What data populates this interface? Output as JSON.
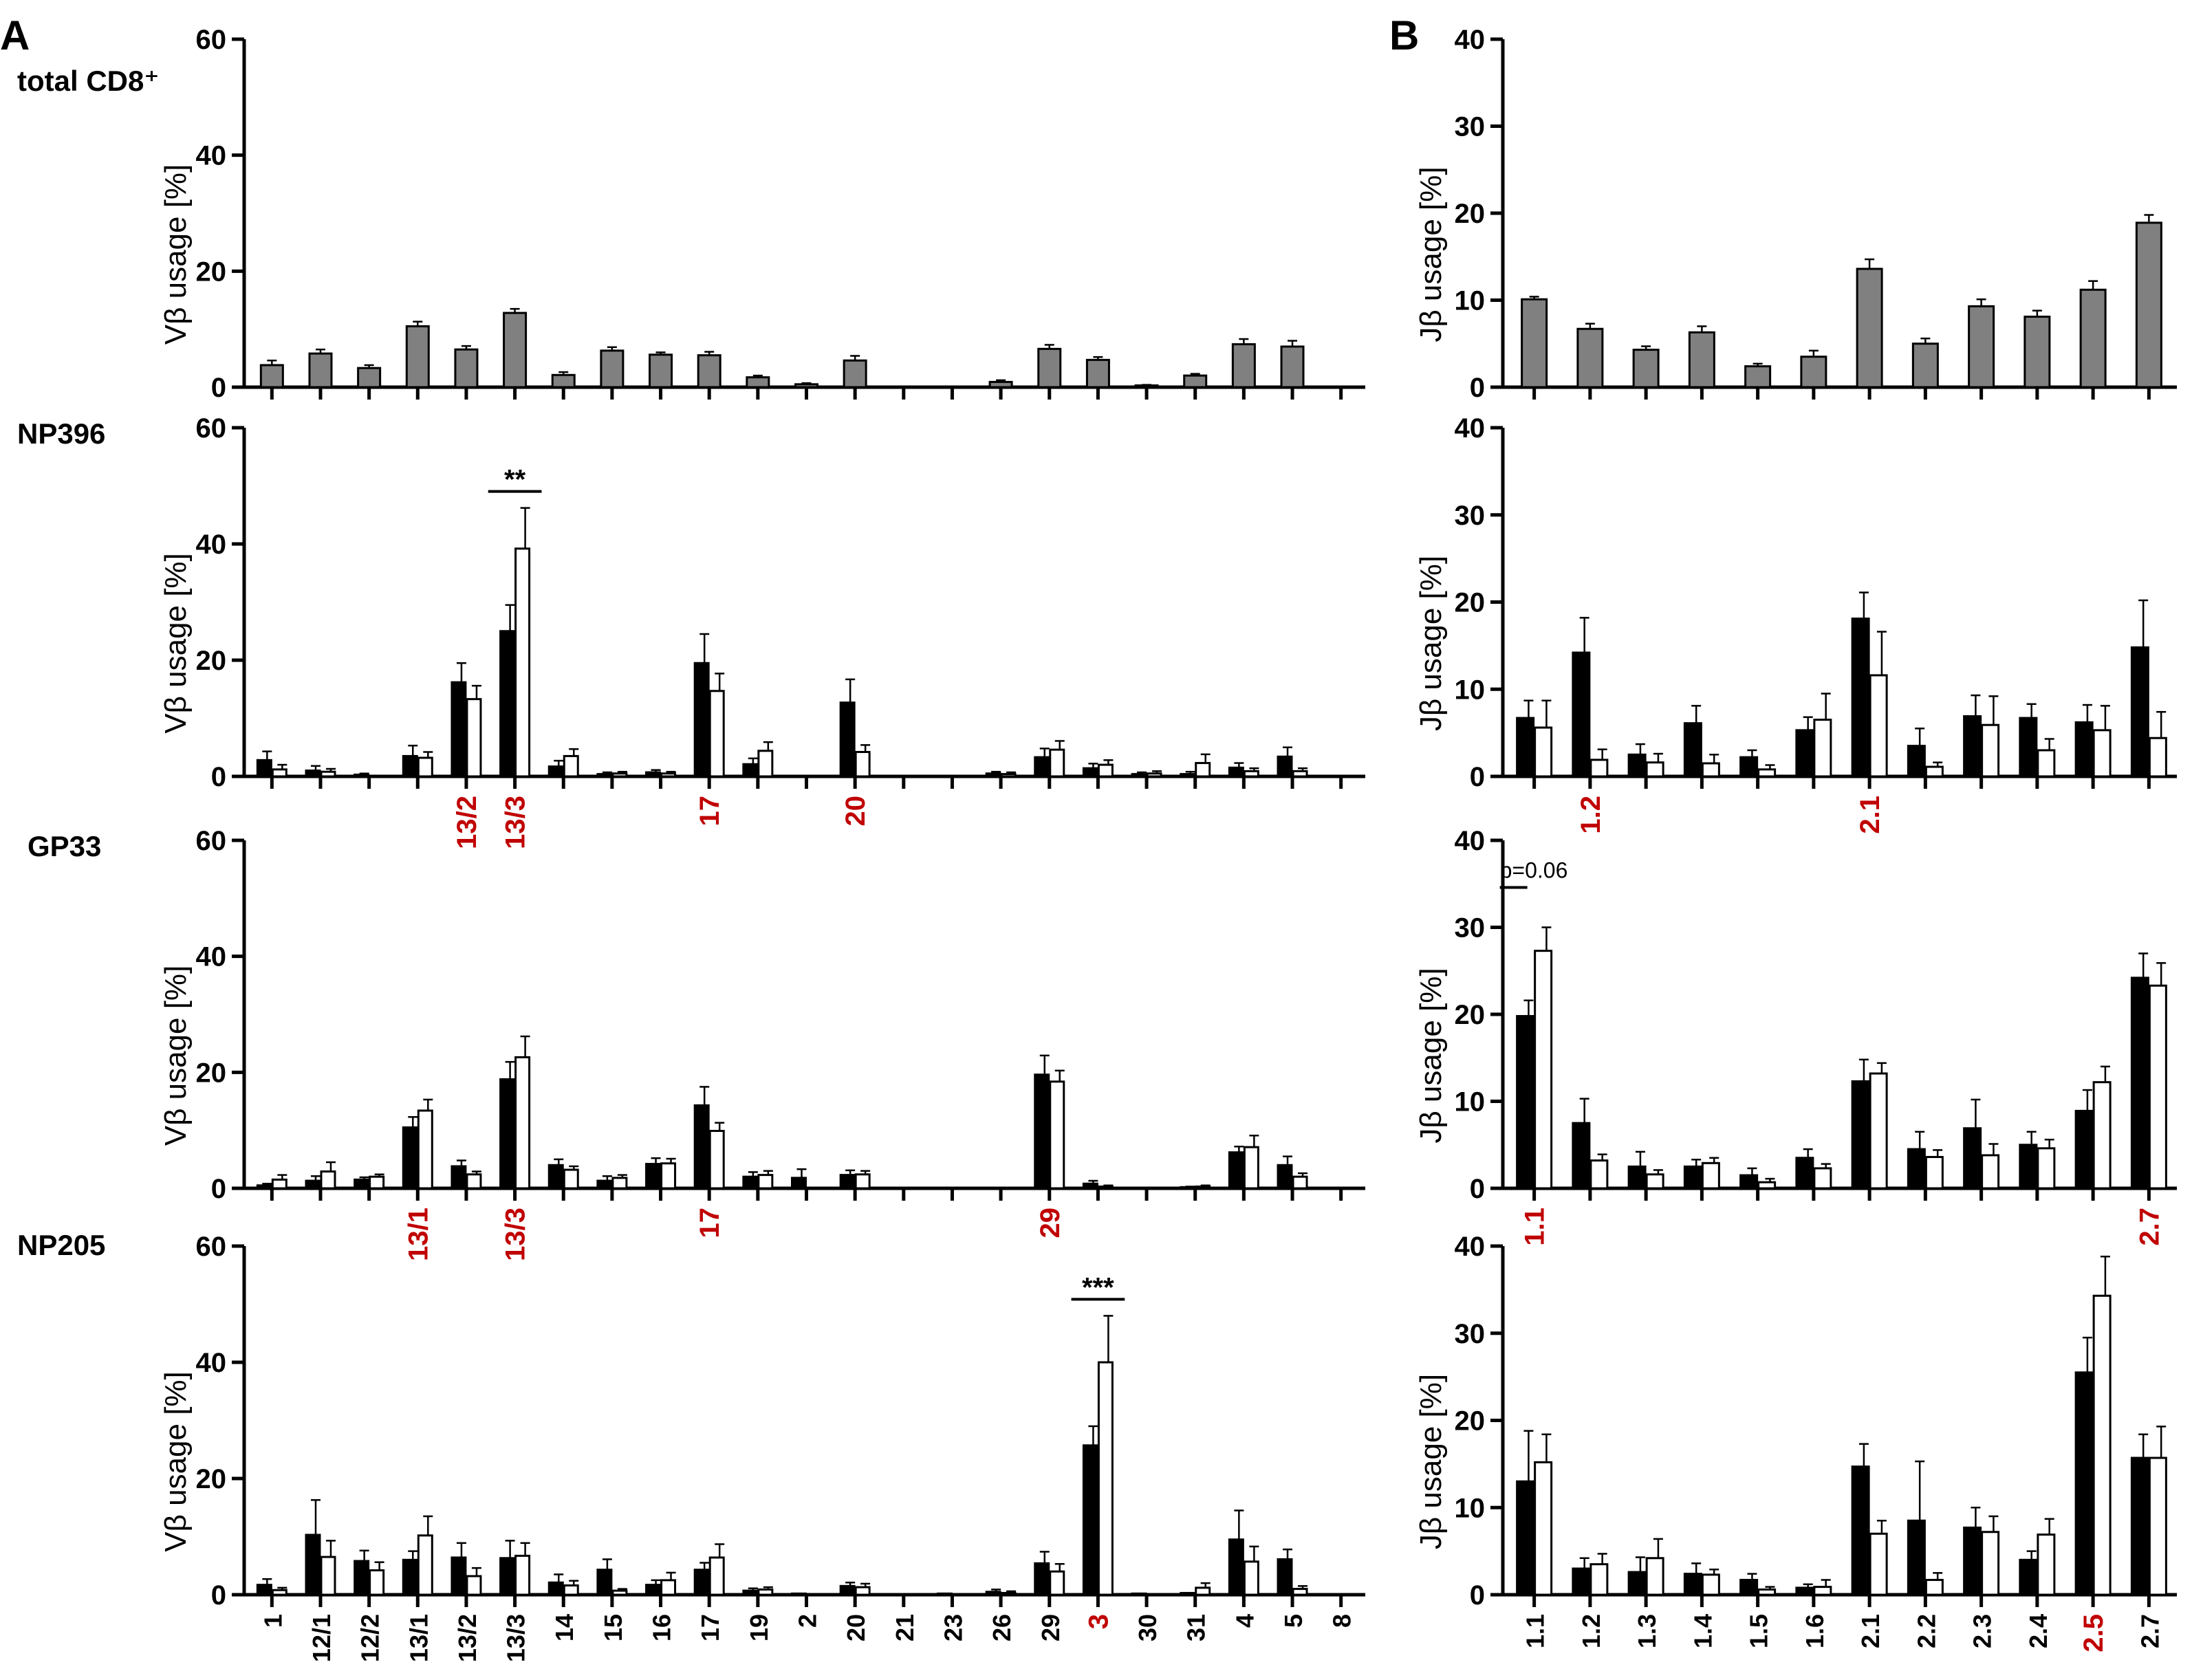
{
  "panel_letters": [
    "A",
    "B"
  ],
  "row_labels": [
    "total CD8⁺",
    "NP396",
    "GP33",
    "NP205"
  ],
  "colors": {
    "gray": "#808080",
    "black": "#000000",
    "white": "#ffffff",
    "highlight": "#c00000"
  },
  "y_axis_label_vb": "Vβ usage [%]",
  "y_axis_label_jb": "Jβ usage [%]",
  "chart_data": [
    {
      "id": "A-total",
      "type": "bar",
      "panel": "A",
      "row": "total CD8⁺",
      "ylabel": "Vβ usage [%]",
      "ylim": [
        0,
        60
      ],
      "yticks": [
        0,
        20,
        40,
        60
      ],
      "categories": [
        "1",
        "12/1",
        "12/2",
        "13/1",
        "13/2",
        "13/3",
        "14",
        "15",
        "16",
        "17",
        "19",
        "2",
        "20",
        "21",
        "23",
        "26",
        "29",
        "3",
        "30",
        "31",
        "4",
        "5",
        "8"
      ],
      "show_category_labels": false,
      "series": [
        {
          "name": "total",
          "color": "gray",
          "values": [
            3.8,
            5.8,
            3.3,
            10.5,
            6.5,
            12.8,
            2.1,
            6.3,
            5.6,
            5.5,
            1.7,
            0.5,
            4.6,
            0,
            0,
            0.9,
            6.6,
            4.7,
            0.3,
            2.0,
            7.4,
            7.0,
            0
          ],
          "errors": [
            0.8,
            0.7,
            0.5,
            0.8,
            0.6,
            0.7,
            0.5,
            0.6,
            0.4,
            0.6,
            0.3,
            0.2,
            0.8,
            0,
            0,
            0.3,
            0.7,
            0.5,
            0.1,
            0.3,
            0.9,
            1.0,
            0
          ]
        }
      ],
      "highlighted": [],
      "significance": []
    },
    {
      "id": "A-NP396",
      "type": "bar",
      "panel": "A",
      "row": "NP396",
      "ylabel": "Vβ usage [%]",
      "ylim": [
        0,
        60
      ],
      "yticks": [
        0,
        20,
        40,
        60
      ],
      "categories": [
        "1",
        "12/1",
        "12/2",
        "13/1",
        "13/2",
        "13/3",
        "14",
        "15",
        "16",
        "17",
        "19",
        "2",
        "20",
        "21",
        "23",
        "26",
        "29",
        "3",
        "30",
        "31",
        "4",
        "5",
        "8"
      ],
      "show_category_labels": false,
      "series": [
        {
          "name": "black",
          "color": "black",
          "values": [
            2.8,
            1.0,
            0.3,
            3.5,
            16.2,
            25.0,
            1.7,
            0.4,
            0.7,
            19.5,
            2.1,
            0,
            12.7,
            0,
            0,
            0.5,
            3.3,
            1.4,
            0.4,
            0.4,
            1.5,
            3.4,
            0
          ],
          "errors": [
            1.5,
            0.8,
            0.2,
            1.8,
            3.3,
            4.5,
            1.0,
            0.3,
            0.4,
            5.0,
            1.0,
            0,
            4.0,
            0,
            0,
            0.3,
            1.5,
            0.8,
            0.3,
            0.4,
            0.8,
            1.6,
            0
          ]
        },
        {
          "name": "white",
          "color": "white",
          "values": [
            1.2,
            0.8,
            0,
            3.2,
            13.3,
            39.2,
            3.5,
            0.5,
            0.5,
            14.7,
            4.4,
            0,
            4.2,
            0,
            0,
            0.4,
            4.6,
            2.0,
            0.5,
            2.3,
            0.9,
            0.9,
            0
          ],
          "errors": [
            0.8,
            0.5,
            0,
            1.0,
            2.3,
            7.0,
            1.2,
            0.3,
            0.3,
            3.0,
            1.5,
            0,
            1.2,
            0,
            0,
            0.3,
            1.5,
            0.8,
            0.4,
            1.5,
            0.5,
            0.5,
            0
          ]
        }
      ],
      "highlighted": [
        "13/2",
        "13/3",
        "17",
        "20"
      ],
      "significance": [
        {
          "category": "13/3",
          "label": "**"
        }
      ]
    },
    {
      "id": "A-GP33",
      "type": "bar",
      "panel": "A",
      "row": "GP33",
      "ylabel": "Vβ usage [%]",
      "ylim": [
        0,
        60
      ],
      "yticks": [
        0,
        20,
        40,
        60
      ],
      "categories": [
        "1",
        "12/1",
        "12/2",
        "13/1",
        "13/2",
        "13/3",
        "14",
        "15",
        "16",
        "17",
        "19",
        "2",
        "20",
        "21",
        "23",
        "26",
        "29",
        "3",
        "30",
        "31",
        "4",
        "5",
        "8"
      ],
      "show_category_labels": false,
      "series": [
        {
          "name": "black",
          "color": "black",
          "values": [
            0.5,
            1.3,
            1.5,
            10.5,
            3.8,
            18.8,
            4.0,
            1.3,
            4.2,
            14.3,
            2.0,
            1.8,
            2.3,
            0,
            0,
            0,
            19.6,
            0.8,
            0,
            0.2,
            6.2,
            4.0,
            0
          ],
          "errors": [
            0.3,
            0.8,
            0.4,
            1.8,
            1.0,
            3.0,
            1.0,
            0.8,
            1.0,
            3.2,
            0.8,
            1.5,
            0.8,
            0,
            0,
            0,
            3.3,
            0.5,
            0,
            0.1,
            1.0,
            1.5,
            0
          ]
        },
        {
          "name": "white",
          "color": "white",
          "values": [
            1.5,
            2.9,
            2.0,
            13.4,
            2.4,
            22.6,
            3.2,
            1.8,
            4.3,
            9.9,
            2.3,
            0,
            2.4,
            0,
            0,
            0,
            18.4,
            0.3,
            0,
            0.3,
            7.1,
            2.0,
            0
          ],
          "errors": [
            0.8,
            1.6,
            0.4,
            1.9,
            0.5,
            3.6,
            0.6,
            0.5,
            0.8,
            1.4,
            0.7,
            0,
            0.6,
            0,
            0,
            0,
            1.9,
            0.2,
            0,
            0.2,
            2.0,
            0.6,
            0
          ]
        }
      ],
      "highlighted": [
        "13/1",
        "13/3",
        "17",
        "29"
      ],
      "significance": []
    },
    {
      "id": "A-NP205",
      "type": "bar",
      "panel": "A",
      "row": "NP205",
      "ylabel": "Vβ usage [%]",
      "ylim": [
        0,
        60
      ],
      "yticks": [
        0,
        20,
        40,
        60
      ],
      "categories": [
        "1",
        "12/1",
        "12/2",
        "13/1",
        "13/2",
        "13/3",
        "14",
        "15",
        "16",
        "17",
        "19",
        "2",
        "20",
        "21",
        "23",
        "26",
        "29",
        "3",
        "30",
        "31",
        "4",
        "5",
        "8"
      ],
      "show_category_labels": true,
      "series": [
        {
          "name": "black",
          "color": "black",
          "values": [
            1.7,
            10.3,
            5.8,
            6.0,
            6.4,
            6.3,
            2.1,
            4.3,
            1.7,
            4.3,
            0.7,
            0.2,
            1.5,
            0,
            0.2,
            0.5,
            5.4,
            25.7,
            0.2,
            0.3,
            9.5,
            6.1,
            0
          ],
          "errors": [
            1.0,
            6.0,
            1.8,
            1.5,
            2.5,
            3.0,
            1.4,
            1.8,
            0.8,
            1.2,
            0.4,
            0.1,
            0.6,
            0,
            0.1,
            0.4,
            2.0,
            3.3,
            0.1,
            0.2,
            5.0,
            1.7,
            0
          ],
          "show_error": [
            true,
            true,
            true,
            true,
            true,
            true,
            true,
            true,
            true,
            true,
            true,
            false,
            true,
            false,
            false,
            true,
            true,
            true,
            false,
            false,
            true,
            true,
            false
          ]
        },
        {
          "name": "white",
          "color": "white",
          "values": [
            0.8,
            6.5,
            4.2,
            10.2,
            3.2,
            6.7,
            1.6,
            0.7,
            2.5,
            6.4,
            0.9,
            0,
            1.3,
            0,
            0,
            0.3,
            4.0,
            40.0,
            0,
            1.2,
            5.7,
            1.0,
            0
          ],
          "errors": [
            0.4,
            2.8,
            1.4,
            3.3,
            1.4,
            2.2,
            0.8,
            0.3,
            1.3,
            2.3,
            0.4,
            0,
            0.6,
            0,
            0,
            0.3,
            1.3,
            8.0,
            0,
            0.8,
            2.6,
            0.5,
            0
          ],
          "show_error": [
            true,
            true,
            true,
            true,
            true,
            true,
            true,
            true,
            true,
            true,
            true,
            false,
            true,
            false,
            false,
            true,
            true,
            true,
            false,
            true,
            true,
            true,
            false
          ]
        }
      ],
      "highlighted": [
        "3"
      ],
      "significance": [
        {
          "category": "3",
          "label": "***"
        }
      ]
    },
    {
      "id": "B-total",
      "type": "bar",
      "panel": "B",
      "row": "total CD8⁺",
      "ylabel": "Jβ usage [%]",
      "ylim": [
        0,
        40
      ],
      "yticks": [
        0,
        10,
        20,
        30,
        40
      ],
      "categories": [
        "1.1",
        "1.2",
        "1.3",
        "1.4",
        "1.5",
        "1.6",
        "2.1",
        "2.2",
        "2.3",
        "2.4",
        "2.5",
        "2.7"
      ],
      "show_category_labels": false,
      "series": [
        {
          "name": "total",
          "color": "gray",
          "values": [
            10.1,
            6.7,
            4.3,
            6.3,
            2.4,
            3.5,
            13.6,
            5.0,
            9.3,
            8.1,
            11.2,
            18.9
          ],
          "errors": [
            0.3,
            0.6,
            0.4,
            0.7,
            0.3,
            0.7,
            1.1,
            0.6,
            0.8,
            0.7,
            1.0,
            0.9
          ]
        }
      ],
      "highlighted": [],
      "significance": []
    },
    {
      "id": "B-NP396",
      "type": "bar",
      "panel": "B",
      "row": "NP396",
      "ylabel": "Jβ usage [%]",
      "ylim": [
        0,
        40
      ],
      "yticks": [
        0,
        10,
        20,
        30,
        40
      ],
      "categories": [
        "1.1",
        "1.2",
        "1.3",
        "1.4",
        "1.5",
        "1.6",
        "2.1",
        "2.2",
        "2.3",
        "2.4",
        "2.5",
        "2.7"
      ],
      "show_category_labels": false,
      "series": [
        {
          "name": "black",
          "color": "black",
          "values": [
            6.7,
            14.2,
            2.5,
            6.1,
            2.2,
            5.3,
            18.1,
            3.5,
            6.9,
            6.7,
            6.2,
            14.8
          ],
          "errors": [
            2.0,
            4.0,
            1.2,
            2.0,
            0.8,
            1.5,
            3.0,
            2.0,
            2.4,
            1.6,
            2.0,
            5.4
          ]
        },
        {
          "name": "white",
          "color": "white",
          "values": [
            5.6,
            1.9,
            1.6,
            1.5,
            0.8,
            6.5,
            11.6,
            1.1,
            5.9,
            3.0,
            5.3,
            4.4
          ],
          "errors": [
            3.1,
            1.2,
            1.0,
            1.0,
            0.5,
            3.0,
            5.0,
            0.5,
            3.3,
            1.3,
            2.8,
            3.0
          ]
        }
      ],
      "highlighted": [
        "1.2",
        "2.1"
      ],
      "significance": []
    },
    {
      "id": "B-GP33",
      "type": "bar",
      "panel": "B",
      "row": "GP33",
      "ylabel": "Jβ usage [%]",
      "ylim": [
        0,
        40
      ],
      "yticks": [
        0,
        10,
        20,
        30,
        40
      ],
      "categories": [
        "1.1",
        "1.2",
        "1.3",
        "1.4",
        "1.5",
        "1.6",
        "2.1",
        "2.2",
        "2.3",
        "2.4",
        "2.5",
        "2.7"
      ],
      "show_category_labels": false,
      "series": [
        {
          "name": "black",
          "color": "black",
          "values": [
            19.8,
            7.5,
            2.5,
            2.5,
            1.5,
            3.5,
            12.3,
            4.5,
            6.9,
            5.0,
            8.9,
            24.2
          ],
          "errors": [
            1.8,
            2.8,
            1.7,
            0.8,
            0.8,
            1.0,
            2.5,
            2.0,
            3.3,
            1.5,
            2.4,
            2.8
          ]
        },
        {
          "name": "white",
          "color": "white",
          "values": [
            27.3,
            3.2,
            1.6,
            2.9,
            0.7,
            2.3,
            13.2,
            3.6,
            3.8,
            4.6,
            12.2,
            23.3
          ],
          "errors": [
            2.7,
            0.7,
            0.5,
            0.6,
            0.4,
            0.5,
            1.2,
            0.8,
            1.3,
            1.0,
            1.8,
            2.6
          ]
        }
      ],
      "highlighted": [
        "1.1",
        "2.7"
      ],
      "significance": [
        {
          "category": "1.1",
          "label": "p=0.06"
        }
      ]
    },
    {
      "id": "B-NP205",
      "type": "bar",
      "panel": "B",
      "row": "NP205",
      "ylabel": "Jβ usage [%]",
      "ylim": [
        0,
        40
      ],
      "yticks": [
        0,
        10,
        20,
        30,
        40
      ],
      "categories": [
        "1.1",
        "1.2",
        "1.3",
        "1.4",
        "1.5",
        "1.6",
        "2.1",
        "2.2",
        "2.3",
        "2.4",
        "2.5",
        "2.7"
      ],
      "show_category_labels": true,
      "series": [
        {
          "name": "black",
          "color": "black",
          "values": [
            13.0,
            3.0,
            2.6,
            2.4,
            1.7,
            0.8,
            14.7,
            8.5,
            7.7,
            4.0,
            25.5,
            15.7
          ],
          "errors": [
            5.8,
            1.2,
            1.7,
            1.2,
            0.7,
            0.4,
            2.6,
            6.8,
            2.3,
            1.0,
            4.0,
            2.7
          ]
        },
        {
          "name": "white",
          "color": "white",
          "values": [
            15.2,
            3.5,
            4.2,
            2.3,
            0.6,
            0.9,
            7.0,
            1.7,
            7.2,
            6.9,
            34.3,
            15.7
          ],
          "errors": [
            3.2,
            1.2,
            2.2,
            0.6,
            0.3,
            0.8,
            1.5,
            0.8,
            1.8,
            1.8,
            4.5,
            3.6
          ]
        }
      ],
      "highlighted": [
        "2.5"
      ],
      "significance": []
    }
  ]
}
